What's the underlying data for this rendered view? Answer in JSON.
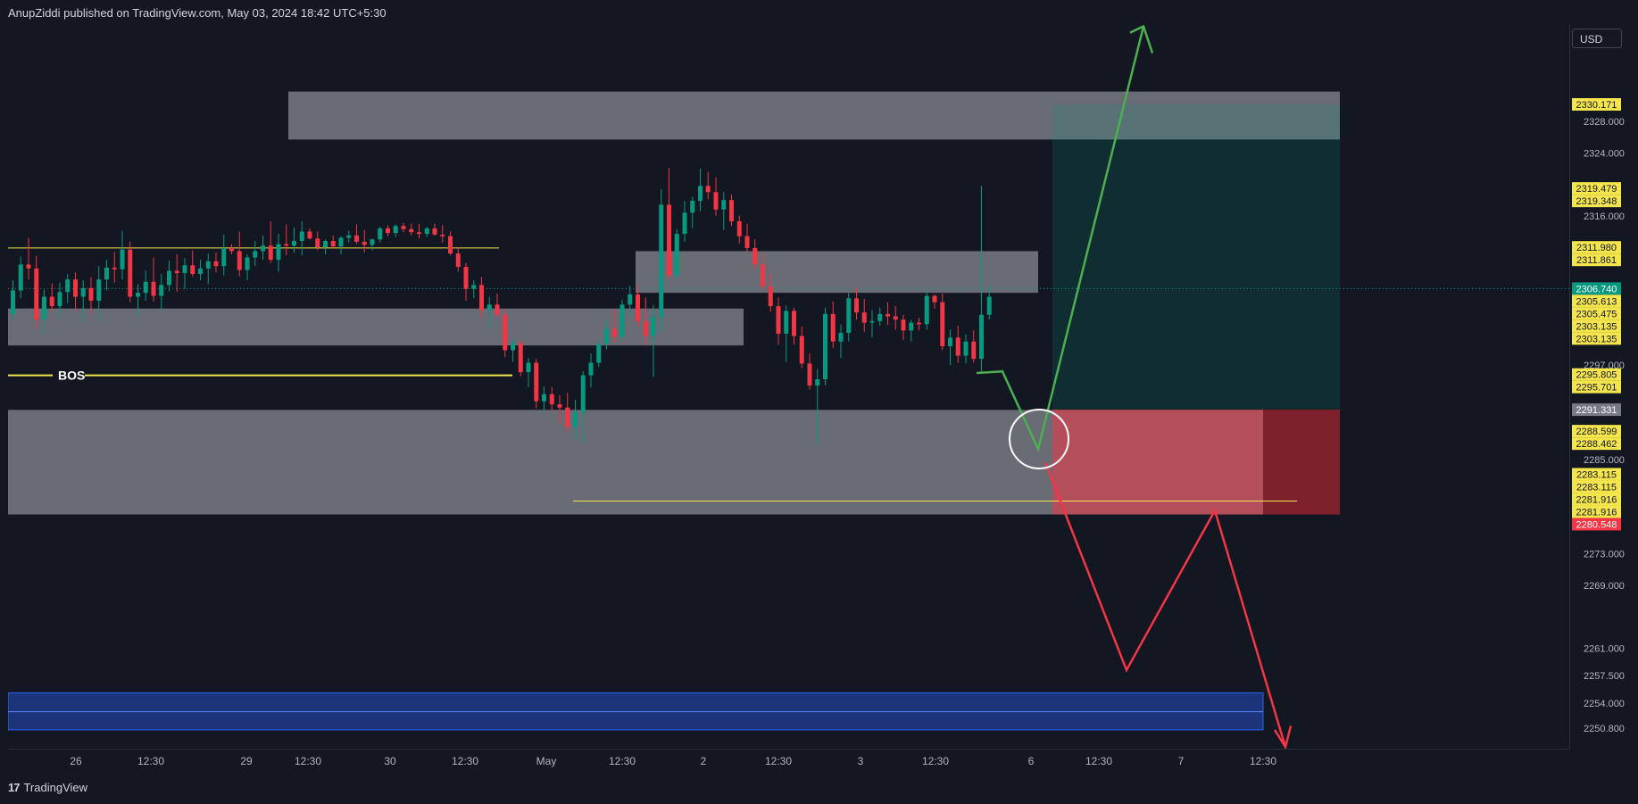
{
  "header": {
    "published": "AnupZiddi published on TradingView.com, May 03, 2024 18:42 UTC+5:30"
  },
  "currency": "USD",
  "footer": {
    "brand": "TradingView"
  },
  "chart_data": {
    "type": "candlestick",
    "ylim": [
      2248.2,
      2340.5
    ],
    "price_ticks": [
      "2328.000",
      "2324.000",
      "2316.000",
      "2297.000",
      "2285.000",
      "2273.000",
      "2269.000",
      "2261.000",
      "2257.500",
      "2254.000",
      "2250.800"
    ],
    "price_labels": [
      {
        "value": "2330.171",
        "bg": "#f5e54c",
        "color": "#131722"
      },
      {
        "value": "2319.479",
        "bg": "#f5e54c",
        "color": "#131722"
      },
      {
        "value": "2319.348",
        "bg": "#f5e54c",
        "color": "#131722"
      },
      {
        "value": "2311.980",
        "bg": "#f5e54c",
        "color": "#131722"
      },
      {
        "value": "2311.861",
        "bg": "#f5e54c",
        "color": "#131722"
      },
      {
        "value": "2306.740",
        "bg": "#089981",
        "color": "#ffffff"
      },
      {
        "value": "2305.613",
        "bg": "#f5e54c",
        "color": "#131722"
      },
      {
        "value": "2305.475",
        "bg": "#f5e54c",
        "color": "#131722"
      },
      {
        "value": "2303.135",
        "bg": "#f5e54c",
        "color": "#131722"
      },
      {
        "value": "2303.135",
        "bg": "#f5e54c",
        "color": "#131722"
      },
      {
        "value": "2295.805",
        "bg": "#f5e54c",
        "color": "#131722"
      },
      {
        "value": "2295.701",
        "bg": "#f5e54c",
        "color": "#131722"
      },
      {
        "value": "2291.331",
        "bg": "#787b86",
        "color": "#ffffff"
      },
      {
        "value": "2288.599",
        "bg": "#f5e54c",
        "color": "#131722"
      },
      {
        "value": "2288.462",
        "bg": "#f5e54c",
        "color": "#131722"
      },
      {
        "value": "2283.115",
        "bg": "#f5e54c",
        "color": "#131722"
      },
      {
        "value": "2283.115",
        "bg": "#f5e54c",
        "color": "#131722"
      },
      {
        "value": "2281.916",
        "bg": "#f5e54c",
        "color": "#131722"
      },
      {
        "value": "2281.916",
        "bg": "#f5e54c",
        "color": "#131722"
      },
      {
        "value": "2280.548",
        "bg": "#f23645",
        "color": "#ffffff"
      }
    ],
    "time_labels": [
      "26",
      "12:30",
      "29",
      "12:30",
      "30",
      "12:30",
      "May",
      "12:30",
      "2",
      "12:30",
      "3",
      "12:30",
      "6",
      "12:30",
      "7",
      "12:30"
    ],
    "annotations": {
      "bos": "BOS"
    },
    "zones": [
      {
        "from": 2325.7,
        "to": 2331.8
      },
      {
        "from": 2306.2,
        "to": 2311.5
      },
      {
        "from": 2299.5,
        "to": 2304.2
      },
      {
        "from": 2278.0,
        "to": 2291.3
      }
    ],
    "levels": [
      2311.9,
      2295.7,
      2279.7
    ],
    "position": {
      "entry": 2291.331,
      "target": 2330.171,
      "stop": 2278.0
    },
    "colors": {
      "up": "#089981",
      "down": "#f23645",
      "zone": "#8a8c96",
      "level": "#f5e54c",
      "bull_path": "#4caf50",
      "bear_path": "#f23645"
    },
    "candles": [
      [
        2303.5,
        2307.8,
        2302.8,
        2306.5
      ],
      [
        2306.5,
        2310.8,
        2305.5,
        2309.8
      ],
      [
        2309.8,
        2313.2,
        2307.9,
        2309.3
      ],
      [
        2309.3,
        2310.9,
        2301.7,
        2302.8
      ],
      [
        2302.8,
        2306.6,
        2300.9,
        2305.7
      ],
      [
        2305.7,
        2307.4,
        2303.9,
        2304.5
      ],
      [
        2304.5,
        2307.5,
        2302.9,
        2306.3
      ],
      [
        2306.3,
        2308.6,
        2304.9,
        2307.9
      ],
      [
        2307.9,
        2308.8,
        2304.0,
        2305.7
      ],
      [
        2305.7,
        2307.8,
        2302.3,
        2306.8
      ],
      [
        2306.8,
        2308.2,
        2303.5,
        2305.2
      ],
      [
        2305.2,
        2309.6,
        2302.6,
        2307.9
      ],
      [
        2307.9,
        2310.4,
        2306.5,
        2309.4
      ],
      [
        2309.4,
        2311.4,
        2307.5,
        2309.2
      ],
      [
        2309.2,
        2314.1,
        2307.9,
        2311.7
      ],
      [
        2311.7,
        2312.7,
        2305.0,
        2305.7
      ],
      [
        2305.7,
        2307.3,
        2303.2,
        2306.2
      ],
      [
        2306.2,
        2309.0,
        2305.2,
        2307.6
      ],
      [
        2307.6,
        2310.7,
        2305.1,
        2305.8
      ],
      [
        2305.8,
        2308.6,
        2304.0,
        2307.2
      ],
      [
        2307.2,
        2310.3,
        2306.4,
        2309.0
      ],
      [
        2309.0,
        2311.1,
        2306.3,
        2308.7
      ],
      [
        2308.7,
        2310.6,
        2306.7,
        2309.7
      ],
      [
        2309.7,
        2311.6,
        2308.3,
        2308.6
      ],
      [
        2308.6,
        2310.4,
        2307.8,
        2309.3
      ],
      [
        2309.3,
        2311.2,
        2307.3,
        2310.2
      ],
      [
        2310.2,
        2311.3,
        2308.8,
        2309.6
      ],
      [
        2309.6,
        2313.6,
        2308.4,
        2311.9
      ],
      [
        2311.9,
        2312.4,
        2311.1,
        2311.5
      ],
      [
        2311.5,
        2314.0,
        2308.3,
        2309.1
      ],
      [
        2309.1,
        2311.1,
        2307.8,
        2310.7
      ],
      [
        2310.7,
        2312.8,
        2309.6,
        2311.5
      ],
      [
        2311.5,
        2313.5,
        2310.4,
        2312.2
      ],
      [
        2312.2,
        2315.3,
        2310.0,
        2310.4
      ],
      [
        2310.4,
        2313.7,
        2308.9,
        2312.4
      ],
      [
        2312.4,
        2314.9,
        2311.0,
        2312.2
      ],
      [
        2312.2,
        2314.5,
        2311.3,
        2312.8
      ],
      [
        2312.8,
        2315.3,
        2311.0,
        2314.0
      ],
      [
        2314.0,
        2314.4,
        2313.0,
        2313.1
      ],
      [
        2313.1,
        2314.0,
        2311.6,
        2312.0
      ],
      [
        2312.0,
        2313.0,
        2311.1,
        2312.8
      ],
      [
        2312.8,
        2313.5,
        2311.8,
        2312.1
      ],
      [
        2312.1,
        2313.4,
        2311.1,
        2313.2
      ],
      [
        2313.2,
        2314.1,
        2312.6,
        2313.5
      ],
      [
        2313.5,
        2314.9,
        2312.4,
        2312.7
      ],
      [
        2312.7,
        2314.2,
        2311.3,
        2312.3
      ],
      [
        2312.3,
        2313.1,
        2311.6,
        2313.0
      ],
      [
        2313.0,
        2314.6,
        2312.6,
        2314.4
      ],
      [
        2314.4,
        2314.8,
        2313.4,
        2313.8
      ],
      [
        2313.8,
        2314.9,
        2313.3,
        2314.7
      ],
      [
        2314.7,
        2315.1,
        2313.9,
        2314.3
      ],
      [
        2314.3,
        2315.0,
        2313.5,
        2313.9
      ],
      [
        2313.9,
        2315.0,
        2313.1,
        2313.7
      ],
      [
        2313.7,
        2314.6,
        2313.3,
        2314.4
      ],
      [
        2314.4,
        2315.0,
        2313.5,
        2313.6
      ],
      [
        2313.6,
        2314.8,
        2312.6,
        2313.4
      ],
      [
        2313.4,
        2314.0,
        2311.0,
        2311.2
      ],
      [
        2311.2,
        2312.0,
        2308.9,
        2309.5
      ],
      [
        2309.5,
        2310.0,
        2305.2,
        2306.7
      ],
      [
        2306.7,
        2307.8,
        2305.5,
        2307.2
      ],
      [
        2307.2,
        2308.2,
        2303.0,
        2304.0
      ],
      [
        2304.0,
        2305.7,
        2301.7,
        2304.7
      ],
      [
        2304.7,
        2306.1,
        2303.1,
        2303.4
      ],
      [
        2303.4,
        2304.1,
        2298.0,
        2298.9
      ],
      [
        2298.9,
        2300.4,
        2297.4,
        2299.8
      ],
      [
        2299.8,
        2300.1,
        2295.6,
        2296.1
      ],
      [
        2296.1,
        2297.9,
        2294.2,
        2297.3
      ],
      [
        2297.3,
        2297.8,
        2291.5,
        2292.4
      ],
      [
        2292.4,
        2294.3,
        2291.1,
        2293.3
      ],
      [
        2293.3,
        2294.2,
        2291.2,
        2292.0
      ],
      [
        2292.0,
        2293.2,
        2289.6,
        2291.6
      ],
      [
        2291.6,
        2293.5,
        2288.5,
        2289.1
      ],
      [
        2289.1,
        2292.6,
        2287.6,
        2291.0
      ],
      [
        2291.0,
        2296.2,
        2287.0,
        2295.7
      ],
      [
        2295.7,
        2298.5,
        2294.2,
        2297.3
      ],
      [
        2297.3,
        2300.1,
        2296.8,
        2299.7
      ],
      [
        2299.7,
        2302.7,
        2299.0,
        2301.6
      ],
      [
        2301.6,
        2304.1,
        2299.8,
        2300.6
      ],
      [
        2300.6,
        2305.3,
        2300.1,
        2304.7
      ],
      [
        2304.7,
        2307.1,
        2303.2,
        2306.0
      ],
      [
        2306.0,
        2307.2,
        2302.0,
        2302.6
      ],
      [
        2302.6,
        2305.6,
        2299.5,
        2300.7
      ],
      [
        2300.7,
        2304.7,
        2295.5,
        2303.1
      ],
      [
        2303.1,
        2319.4,
        2301.2,
        2317.4
      ],
      [
        2317.4,
        2322.1,
        2308.0,
        2308.4
      ],
      [
        2308.4,
        2314.3,
        2308.0,
        2313.7
      ],
      [
        2313.7,
        2317.9,
        2312.7,
        2316.4
      ],
      [
        2316.4,
        2318.4,
        2314.4,
        2317.9
      ],
      [
        2317.9,
        2322.0,
        2316.6,
        2319.8
      ],
      [
        2319.8,
        2321.6,
        2318.1,
        2319.0
      ],
      [
        2319.0,
        2320.9,
        2316.0,
        2316.8
      ],
      [
        2316.8,
        2319.0,
        2314.2,
        2318.0
      ],
      [
        2318.0,
        2318.7,
        2314.7,
        2315.3
      ],
      [
        2315.3,
        2316.0,
        2312.5,
        2313.4
      ],
      [
        2313.4,
        2315.0,
        2311.4,
        2311.9
      ],
      [
        2311.9,
        2313.0,
        2309.2,
        2309.8
      ],
      [
        2309.8,
        2311.3,
        2306.4,
        2307.0
      ],
      [
        2307.0,
        2308.6,
        2303.8,
        2304.5
      ],
      [
        2304.5,
        2305.6,
        2299.6,
        2301.0
      ],
      [
        2301.0,
        2304.6,
        2297.4,
        2303.9
      ],
      [
        2303.9,
        2304.3,
        2299.6,
        2300.7
      ],
      [
        2300.7,
        2301.9,
        2296.6,
        2297.2
      ],
      [
        2297.2,
        2298.5,
        2293.9,
        2294.4
      ],
      [
        2294.4,
        2296.5,
        2286.8,
        2295.2
      ],
      [
        2295.2,
        2304.3,
        2294.4,
        2303.5
      ],
      [
        2303.5,
        2305.1,
        2299.2,
        2300.0
      ],
      [
        2300.0,
        2302.2,
        2297.9,
        2301.1
      ],
      [
        2301.1,
        2306.2,
        2300.0,
        2305.5
      ],
      [
        2305.5,
        2306.9,
        2302.8,
        2303.7
      ],
      [
        2303.7,
        2305.4,
        2301.2,
        2302.4
      ],
      [
        2302.4,
        2304.0,
        2300.5,
        2302.6
      ],
      [
        2302.6,
        2304.3,
        2302.0,
        2303.5
      ],
      [
        2303.5,
        2305.0,
        2302.1,
        2303.2
      ],
      [
        2303.2,
        2304.5,
        2301.5,
        2302.8
      ],
      [
        2302.8,
        2303.4,
        2300.2,
        2301.4
      ],
      [
        2301.4,
        2302.8,
        2300.0,
        2302.4
      ],
      [
        2302.4,
        2303.0,
        2301.4,
        2302.2
      ],
      [
        2302.2,
        2306.5,
        2301.5,
        2305.8
      ],
      [
        2305.8,
        2306.0,
        2304.2,
        2305.0
      ],
      [
        2305.0,
        2306.1,
        2298.9,
        2299.4
      ],
      [
        2299.4,
        2301.5,
        2297.0,
        2300.5
      ],
      [
        2300.5,
        2302.0,
        2297.3,
        2298.2
      ],
      [
        2298.2,
        2300.9,
        2297.2,
        2300.0
      ],
      [
        2300.0,
        2301.4,
        2297.3,
        2297.8
      ],
      [
        2297.8,
        2319.8,
        2296.2,
        2303.4
      ],
      [
        2303.4,
        2307.0,
        2302.8,
        2305.7
      ]
    ]
  }
}
